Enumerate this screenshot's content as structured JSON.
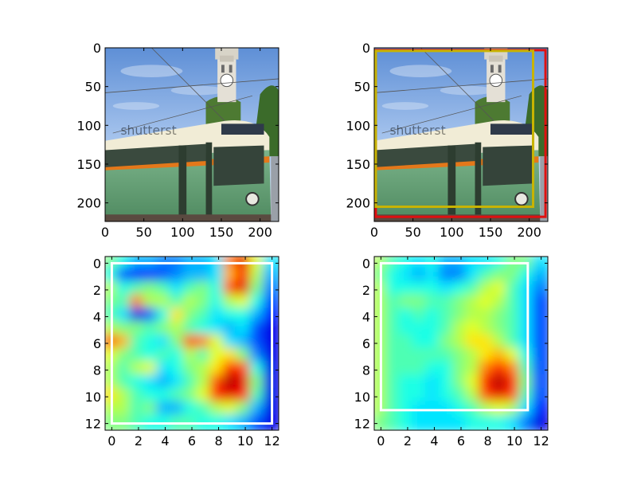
{
  "figure": {
    "background": "#ffffff"
  },
  "chart_data": [
    {
      "type": "image",
      "panel": "top-left",
      "content": "photo",
      "xlim": [
        0,
        224
      ],
      "ylim": [
        224,
        0
      ],
      "xticks": [
        0,
        50,
        100,
        150,
        200
      ],
      "yticks": [
        0,
        50,
        100,
        150,
        200
      ],
      "xtick_labels": [
        "0",
        "50",
        "100",
        "150",
        "200"
      ],
      "ytick_labels": [
        "0",
        "50",
        "100",
        "150",
        "200"
      ],
      "boxes": [],
      "watermark": "shutterst"
    },
    {
      "type": "image",
      "panel": "top-right",
      "content": "photo",
      "xlim": [
        0,
        224
      ],
      "ylim": [
        224,
        0
      ],
      "xticks": [
        0,
        50,
        100,
        150,
        200
      ],
      "yticks": [
        0,
        50,
        100,
        150,
        200
      ],
      "xtick_labels": [
        "0",
        "50",
        "100",
        "150",
        "200"
      ],
      "ytick_labels": [
        "0",
        "50",
        "100",
        "150",
        "200"
      ],
      "boxes": [
        {
          "x0": 2,
          "y0": 3,
          "x1": 221,
          "y1": 218,
          "color": "#e01010"
        },
        {
          "x0": 2,
          "y0": 4,
          "x1": 205,
          "y1": 205,
          "color": "#c8b400"
        }
      ],
      "watermark": "shutterst"
    },
    {
      "type": "heatmap",
      "panel": "bottom-left",
      "colormap": "jet",
      "xlim": [
        -0.5,
        12.5
      ],
      "ylim": [
        12.5,
        -0.5
      ],
      "xticks": [
        0,
        2,
        4,
        6,
        8,
        10,
        12
      ],
      "yticks": [
        0,
        2,
        4,
        6,
        8,
        10,
        12
      ],
      "xtick_labels": [
        "0",
        "2",
        "4",
        "6",
        "8",
        "10",
        "12"
      ],
      "ytick_labels": [
        "0",
        "2",
        "4",
        "6",
        "8",
        "10",
        "12"
      ],
      "values": [
        [
          0.5,
          0.4,
          0.3,
          0.3,
          0.25,
          0.25,
          0.3,
          0.3,
          0.35,
          0.75,
          0.9,
          0.6,
          0.35
        ],
        [
          0.4,
          0.2,
          0.15,
          0.15,
          0.2,
          0.25,
          0.3,
          0.3,
          0.35,
          0.7,
          0.85,
          0.55,
          0.3
        ],
        [
          0.55,
          0.4,
          0.45,
          0.5,
          0.45,
          0.35,
          0.45,
          0.5,
          0.4,
          0.8,
          0.9,
          0.5,
          0.25
        ],
        [
          0.5,
          0.45,
          0.75,
          0.55,
          0.55,
          0.45,
          0.55,
          0.5,
          0.4,
          0.55,
          0.6,
          0.4,
          0.2
        ],
        [
          0.45,
          0.35,
          0.1,
          0.2,
          0.4,
          0.65,
          0.5,
          0.45,
          0.35,
          0.4,
          0.4,
          0.3,
          0.15
        ],
        [
          0.55,
          0.5,
          0.5,
          0.45,
          0.5,
          0.55,
          0.45,
          0.4,
          0.35,
          0.3,
          0.35,
          0.2,
          0.1
        ],
        [
          0.8,
          0.7,
          0.45,
          0.4,
          0.35,
          0.5,
          0.8,
          0.75,
          0.6,
          0.35,
          0.3,
          0.2,
          0.1
        ],
        [
          0.6,
          0.5,
          0.45,
          0.4,
          0.45,
          0.4,
          0.55,
          0.45,
          0.6,
          0.65,
          0.5,
          0.25,
          0.1
        ],
        [
          0.55,
          0.45,
          0.55,
          0.6,
          0.35,
          0.4,
          0.5,
          0.55,
          0.65,
          0.85,
          0.8,
          0.4,
          0.1
        ],
        [
          0.55,
          0.45,
          0.4,
          0.35,
          0.3,
          0.35,
          0.45,
          0.55,
          0.8,
          0.95,
          0.9,
          0.5,
          0.1
        ],
        [
          0.65,
          0.55,
          0.45,
          0.4,
          0.4,
          0.45,
          0.5,
          0.6,
          0.85,
          0.9,
          0.85,
          0.45,
          0.1
        ],
        [
          0.55,
          0.55,
          0.45,
          0.5,
          0.3,
          0.3,
          0.4,
          0.45,
          0.55,
          0.6,
          0.5,
          0.3,
          0.1
        ],
        [
          0.5,
          0.5,
          0.45,
          0.4,
          0.4,
          0.45,
          0.45,
          0.4,
          0.4,
          0.35,
          0.3,
          0.2,
          0.1
        ]
      ],
      "boxes": [
        {
          "x0": 0,
          "y0": 0,
          "x1": 12,
          "y1": 12,
          "color": "#ffffff"
        }
      ]
    },
    {
      "type": "heatmap",
      "panel": "bottom-right",
      "colormap": "jet",
      "xlim": [
        -0.5,
        12.5
      ],
      "ylim": [
        12.5,
        -0.5
      ],
      "xticks": [
        0,
        2,
        4,
        6,
        8,
        10,
        12
      ],
      "yticks": [
        0,
        2,
        4,
        6,
        8,
        10,
        12
      ],
      "xtick_labels": [
        "0",
        "2",
        "4",
        "6",
        "8",
        "10",
        "12"
      ],
      "ytick_labels": [
        "0",
        "2",
        "4",
        "6",
        "8",
        "10",
        "12"
      ],
      "values": [
        [
          0.55,
          0.45,
          0.4,
          0.35,
          0.4,
          0.3,
          0.3,
          0.35,
          0.35,
          0.4,
          0.5,
          0.5,
          0.35
        ],
        [
          0.5,
          0.4,
          0.35,
          0.3,
          0.35,
          0.25,
          0.25,
          0.35,
          0.45,
          0.5,
          0.5,
          0.4,
          0.3
        ],
        [
          0.55,
          0.4,
          0.4,
          0.4,
          0.4,
          0.35,
          0.4,
          0.45,
          0.55,
          0.6,
          0.45,
          0.35,
          0.25
        ],
        [
          0.55,
          0.45,
          0.5,
          0.5,
          0.45,
          0.45,
          0.5,
          0.55,
          0.6,
          0.55,
          0.45,
          0.35,
          0.2
        ],
        [
          0.55,
          0.45,
          0.4,
          0.45,
          0.4,
          0.45,
          0.5,
          0.55,
          0.55,
          0.5,
          0.45,
          0.35,
          0.2
        ],
        [
          0.55,
          0.45,
          0.4,
          0.4,
          0.4,
          0.45,
          0.55,
          0.6,
          0.55,
          0.5,
          0.45,
          0.35,
          0.2
        ],
        [
          0.55,
          0.45,
          0.45,
          0.4,
          0.4,
          0.5,
          0.55,
          0.65,
          0.65,
          0.55,
          0.45,
          0.35,
          0.2
        ],
        [
          0.55,
          0.45,
          0.45,
          0.45,
          0.45,
          0.45,
          0.5,
          0.55,
          0.65,
          0.7,
          0.6,
          0.4,
          0.2
        ],
        [
          0.55,
          0.45,
          0.45,
          0.45,
          0.4,
          0.4,
          0.5,
          0.55,
          0.75,
          0.85,
          0.75,
          0.45,
          0.2
        ],
        [
          0.55,
          0.45,
          0.4,
          0.4,
          0.35,
          0.4,
          0.5,
          0.6,
          0.85,
          0.95,
          0.85,
          0.5,
          0.2
        ],
        [
          0.55,
          0.45,
          0.4,
          0.4,
          0.35,
          0.4,
          0.45,
          0.55,
          0.8,
          0.9,
          0.8,
          0.45,
          0.2
        ],
        [
          0.55,
          0.45,
          0.4,
          0.35,
          0.35,
          0.35,
          0.4,
          0.45,
          0.55,
          0.6,
          0.55,
          0.35,
          0.15
        ],
        [
          0.5,
          0.45,
          0.4,
          0.35,
          0.35,
          0.35,
          0.35,
          0.4,
          0.4,
          0.4,
          0.35,
          0.25,
          0.1
        ]
      ],
      "boxes": [
        {
          "x0": 0,
          "y0": 0,
          "x1": 11,
          "y1": 11,
          "color": "#ffffff"
        }
      ]
    }
  ]
}
